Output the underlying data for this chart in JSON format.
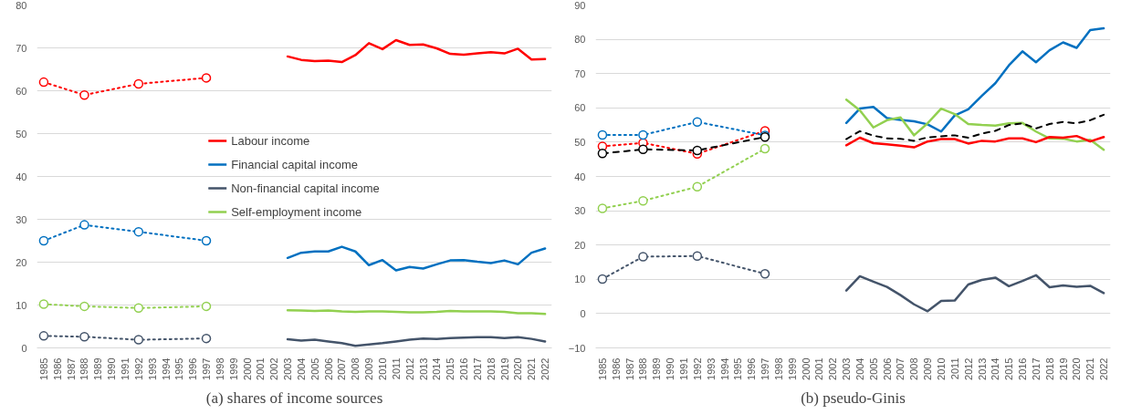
{
  "chart_data": [
    {
      "type": "line",
      "title": "(a) shares of income sources",
      "categories": [
        "1985",
        "1986",
        "1987",
        "1988",
        "1989",
        "1990",
        "1991",
        "1992",
        "1993",
        "1994",
        "1995",
        "1996",
        "1997",
        "1998",
        "1999",
        "2000",
        "2001",
        "2002",
        "2003",
        "2004",
        "2005",
        "2006",
        "2007",
        "2008",
        "2009",
        "2010",
        "2011",
        "2012",
        "2013",
        "2014",
        "2015",
        "2016",
        "2017",
        "2018",
        "2019",
        "2020",
        "2021",
        "2022"
      ],
      "ylim": [
        0,
        80
      ],
      "yticks": [
        0,
        10,
        20,
        30,
        40,
        50,
        60,
        70,
        80
      ],
      "grid": "y",
      "legend": "center",
      "series": [
        {
          "color": "#ff0000",
          "line_style": "dotted",
          "marker": "circle",
          "values": [
            62,
            null,
            null,
            59,
            null,
            null,
            null,
            61.6,
            null,
            null,
            null,
            null,
            63,
            null,
            null,
            null,
            null,
            null,
            null,
            null,
            null,
            null,
            null,
            null,
            null,
            null,
            null,
            null,
            null,
            null,
            null,
            null,
            null,
            null,
            null,
            null,
            null,
            null
          ]
        },
        {
          "color": "#0070c0",
          "line_style": "dotted",
          "marker": "circle",
          "values": [
            25,
            null,
            null,
            28.7,
            null,
            null,
            null,
            27.1,
            null,
            null,
            null,
            null,
            25,
            null,
            null,
            null,
            null,
            null,
            null,
            null,
            null,
            null,
            null,
            null,
            null,
            null,
            null,
            null,
            null,
            null,
            null,
            null,
            null,
            null,
            null,
            null,
            null,
            null
          ]
        },
        {
          "color": "#44546a",
          "line_style": "dotted",
          "marker": "circle",
          "values": [
            2.8,
            null,
            null,
            2.6,
            null,
            null,
            null,
            1.9,
            null,
            null,
            null,
            null,
            2.2,
            null,
            null,
            null,
            null,
            null,
            null,
            null,
            null,
            null,
            null,
            null,
            null,
            null,
            null,
            null,
            null,
            null,
            null,
            null,
            null,
            null,
            null,
            null,
            null,
            null
          ]
        },
        {
          "color": "#92d050",
          "line_style": "dotted",
          "marker": "circle",
          "values": [
            10.2,
            null,
            null,
            9.7,
            null,
            null,
            null,
            9.3,
            null,
            null,
            null,
            null,
            9.7,
            null,
            null,
            null,
            null,
            null,
            null,
            null,
            null,
            null,
            null,
            null,
            null,
            null,
            null,
            null,
            null,
            null,
            null,
            null,
            null,
            null,
            null,
            null,
            null,
            null
          ]
        },
        {
          "name": "Labour income",
          "color": "#ff0000",
          "line_style": "solid",
          "marker": "none",
          "values": [
            null,
            null,
            null,
            null,
            null,
            null,
            null,
            null,
            null,
            null,
            null,
            null,
            null,
            null,
            null,
            null,
            null,
            null,
            68.0,
            67.2,
            66.9,
            67.0,
            66.7,
            68.3,
            71.1,
            69.7,
            71.8,
            70.7,
            70.8,
            69.9,
            68.6,
            68.4,
            68.7,
            69.0,
            68.7,
            69.8,
            67.3,
            67.4
          ]
        },
        {
          "name": "Financial capital income",
          "color": "#0070c0",
          "line_style": "solid",
          "marker": "none",
          "values": [
            null,
            null,
            null,
            null,
            null,
            null,
            null,
            null,
            null,
            null,
            null,
            null,
            null,
            null,
            null,
            null,
            null,
            null,
            21.0,
            22.2,
            22.5,
            22.5,
            23.6,
            22.5,
            19.3,
            20.5,
            18.1,
            18.9,
            18.5,
            19.5,
            20.4,
            20.5,
            20.1,
            19.8,
            20.4,
            19.5,
            22.2,
            23.2
          ]
        },
        {
          "name": "Non-financial capital income",
          "color": "#44546a",
          "line_style": "solid",
          "marker": "none",
          "values": [
            null,
            null,
            null,
            null,
            null,
            null,
            null,
            null,
            null,
            null,
            null,
            null,
            null,
            null,
            null,
            null,
            null,
            null,
            2.0,
            1.7,
            1.9,
            1.5,
            1.1,
            0.5,
            0.8,
            1.1,
            1.5,
            1.9,
            2.2,
            2.1,
            2.3,
            2.4,
            2.5,
            2.5,
            2.3,
            2.5,
            2.1,
            1.5
          ]
        },
        {
          "name": "Self-employment income",
          "color": "#92d050",
          "line_style": "solid",
          "marker": "none",
          "values": [
            null,
            null,
            null,
            null,
            null,
            null,
            null,
            null,
            null,
            null,
            null,
            null,
            null,
            null,
            null,
            null,
            null,
            null,
            8.8,
            8.7,
            8.6,
            8.7,
            8.5,
            8.4,
            8.5,
            8.5,
            8.4,
            8.3,
            8.3,
            8.4,
            8.6,
            8.5,
            8.5,
            8.5,
            8.4,
            8.1,
            8.1,
            7.9
          ]
        }
      ]
    },
    {
      "type": "line",
      "title": "(b) pseudo-Ginis",
      "categories": [
        "1985",
        "1986",
        "1987",
        "1988",
        "1989",
        "1990",
        "1991",
        "1992",
        "1993",
        "1994",
        "1995",
        "1996",
        "1997",
        "1998",
        "1999",
        "2000",
        "2001",
        "2002",
        "2003",
        "2004",
        "2005",
        "2006",
        "2007",
        "2008",
        "2009",
        "2010",
        "2011",
        "2012",
        "2013",
        "2014",
        "2015",
        "2016",
        "2017",
        "2018",
        "2019",
        "2020",
        "2021",
        "2022"
      ],
      "ylim": [
        -10,
        90
      ],
      "yticks": [
        -10,
        0,
        10,
        20,
        30,
        40,
        50,
        60,
        70,
        80,
        90
      ],
      "grid": "y",
      "series": [
        {
          "color": "#ff0000",
          "line_style": "dotted",
          "marker": "circle",
          "values": [
            48.8,
            null,
            null,
            49.8,
            null,
            null,
            null,
            46.6,
            null,
            null,
            null,
            null,
            53.3,
            null,
            null,
            null,
            null,
            null,
            null,
            null,
            null,
            null,
            null,
            null,
            null,
            null,
            null,
            null,
            null,
            null,
            null,
            null,
            null,
            null,
            null,
            null,
            null,
            null
          ]
        },
        {
          "color": "#0070c0",
          "line_style": "dotted",
          "marker": "circle",
          "values": [
            52.1,
            null,
            null,
            52.1,
            null,
            null,
            null,
            55.9,
            null,
            null,
            null,
            null,
            52,
            null,
            null,
            null,
            null,
            null,
            null,
            null,
            null,
            null,
            null,
            null,
            null,
            null,
            null,
            null,
            null,
            null,
            null,
            null,
            null,
            null,
            null,
            null,
            null,
            null
          ]
        },
        {
          "color": "#44546a",
          "line_style": "dotted",
          "marker": "circle",
          "values": [
            10.1,
            null,
            null,
            16.6,
            null,
            null,
            null,
            16.8,
            null,
            null,
            null,
            null,
            11.6,
            null,
            null,
            null,
            null,
            null,
            null,
            null,
            null,
            null,
            null,
            null,
            null,
            null,
            null,
            null,
            null,
            null,
            null,
            null,
            null,
            null,
            null,
            null,
            null,
            null
          ]
        },
        {
          "color": "#92d050",
          "line_style": "dotted",
          "marker": "circle",
          "values": [
            30.7,
            null,
            null,
            32.9,
            null,
            null,
            null,
            37,
            null,
            null,
            null,
            null,
            48.1,
            null,
            null,
            null,
            null,
            null,
            null,
            null,
            null,
            null,
            null,
            null,
            null,
            null,
            null,
            null,
            null,
            null,
            null,
            null,
            null,
            null,
            null,
            null,
            null,
            null
          ]
        },
        {
          "color": "#000000",
          "line_style": "dashed",
          "marker": "circle",
          "values": [
            46.7,
            null,
            null,
            47.9,
            null,
            null,
            null,
            47.6,
            null,
            null,
            null,
            null,
            51.5,
            null,
            null,
            null,
            null,
            null,
            null,
            null,
            null,
            null,
            null,
            null,
            null,
            null,
            null,
            null,
            null,
            null,
            null,
            null,
            null,
            null,
            null,
            null,
            null,
            null
          ]
        },
        {
          "color": "#0070c0",
          "line_style": "solid",
          "marker": "none",
          "values": [
            null,
            null,
            null,
            null,
            null,
            null,
            null,
            null,
            null,
            null,
            null,
            null,
            null,
            null,
            null,
            null,
            null,
            null,
            55.6,
            59.8,
            60.3,
            57.0,
            56.5,
            56.1,
            55.2,
            53.1,
            57.8,
            59.6,
            63.5,
            67.2,
            72.4,
            76.5,
            73.3,
            76.8,
            79.1,
            77.5,
            82.7,
            83.2
          ]
        },
        {
          "color": "#92d050",
          "line_style": "solid",
          "marker": "none",
          "values": [
            null,
            null,
            null,
            null,
            null,
            null,
            null,
            null,
            null,
            null,
            null,
            null,
            null,
            null,
            null,
            null,
            null,
            null,
            62.4,
            59.3,
            54.3,
            56.4,
            57.2,
            52.0,
            55.5,
            59.8,
            58.2,
            55.3,
            55.0,
            54.8,
            55.5,
            55.6,
            53.1,
            51.1,
            51.0,
            50.2,
            50.7,
            47.8
          ]
        },
        {
          "color": "#ff0000",
          "line_style": "solid",
          "marker": "none",
          "values": [
            null,
            null,
            null,
            null,
            null,
            null,
            null,
            null,
            null,
            null,
            null,
            null,
            null,
            null,
            null,
            null,
            null,
            null,
            49.1,
            51.3,
            49.7,
            49.4,
            49.0,
            48.5,
            50.2,
            50.9,
            50.9,
            49.6,
            50.4,
            50.2,
            51.1,
            51.1,
            50.0,
            51.5,
            51.3,
            51.8,
            50.2,
            51.5
          ]
        },
        {
          "color": "#000000",
          "line_style": "dashed",
          "marker": "none",
          "values": [
            null,
            null,
            null,
            null,
            null,
            null,
            null,
            null,
            null,
            null,
            null,
            null,
            null,
            null,
            null,
            null,
            null,
            null,
            50.9,
            53.2,
            51.9,
            51.1,
            51.0,
            50.4,
            51.4,
            51.7,
            52.0,
            51.3,
            52.5,
            53.3,
            55.0,
            55.5,
            54.0,
            55.3,
            55.9,
            55.5,
            56.4,
            58.0
          ]
        },
        {
          "color": "#44546a",
          "line_style": "solid",
          "marker": "none",
          "values": [
            null,
            null,
            null,
            null,
            null,
            null,
            null,
            null,
            null,
            null,
            null,
            null,
            null,
            null,
            null,
            null,
            null,
            null,
            6.7,
            10.9,
            9.3,
            7.8,
            5.4,
            2.7,
            0.7,
            3.7,
            3.8,
            8.5,
            9.8,
            10.5,
            8.0,
            9.5,
            11.2,
            7.7,
            8.2,
            7.8,
            8.1,
            6.0
          ]
        }
      ]
    }
  ]
}
